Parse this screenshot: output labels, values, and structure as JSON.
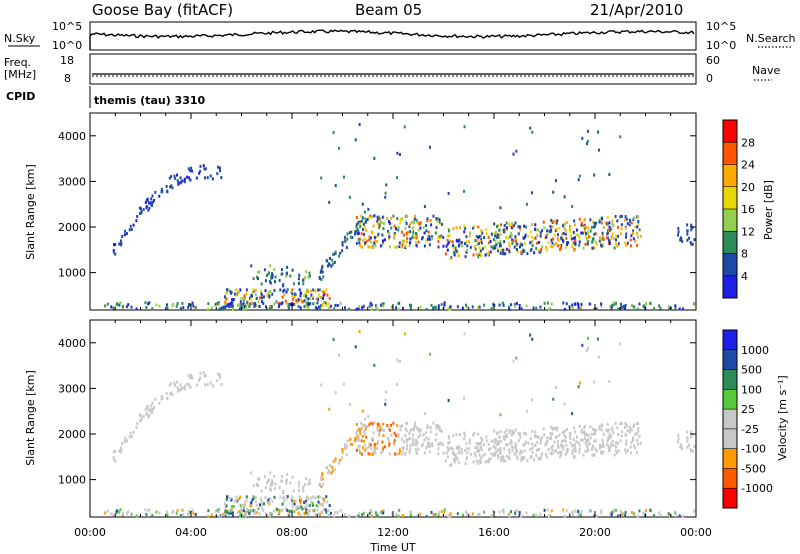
{
  "header": {
    "station": "Goose Bay (fitACF)",
    "beam": "Beam 05",
    "date": "21/Apr/2010"
  },
  "strip_labels": {
    "nsky": "N.Sky",
    "nsky_ticks": [
      "10^5",
      "10^0"
    ],
    "nsearch": "N.Search",
    "freq": "Freq.",
    "freq_unit": "[MHz]",
    "freq_ticks": [
      "18",
      "8"
    ],
    "nave": "Nave",
    "nave_ticks": [
      "60",
      "0"
    ],
    "cpid": "CPID",
    "program": "themis (tau) 3310"
  },
  "chart_data": [
    {
      "type": "heatmap",
      "name": "power",
      "ylabel": "Slant Range [km]",
      "xlabel": "",
      "y_ticks": [
        "4000",
        "3000",
        "2000",
        "1000"
      ],
      "ylim": [
        180,
        4500
      ],
      "colorbar_label": "Power [dB]",
      "colorbar_ticks": [
        "28",
        "24",
        "20",
        "16",
        "12",
        "8",
        "4"
      ],
      "colorbar_colors": [
        "#ff0000",
        "#ff5500",
        "#ffaa00",
        "#e6d800",
        "#92d050",
        "#2e8b57",
        "#1f4aa8",
        "#1e1ee6"
      ],
      "features": [
        {
          "t_start": 1.0,
          "t_end": 5.2,
          "r_start": 1500,
          "r_end": 3200,
          "note": "arc"
        },
        {
          "t_start": 5.5,
          "t_end": 9.5,
          "r_start": 250,
          "r_end": 600
        },
        {
          "t_start": 10.5,
          "t_end": 21.8,
          "r_start": 1300,
          "r_end": 2200
        },
        {
          "t_start": 0.5,
          "t_end": 24.0,
          "r_start": 180,
          "r_end": 350
        }
      ]
    },
    {
      "type": "heatmap",
      "name": "velocity",
      "ylabel": "Slant Range [km]",
      "xlabel": "Time UT",
      "y_ticks": [
        "4000",
        "3000",
        "2000",
        "1000"
      ],
      "ylim": [
        180,
        4500
      ],
      "colorbar_label": "Velocity [m s⁻¹]",
      "colorbar_ticks": [
        "1000",
        "500",
        "100",
        "25",
        "-25",
        "-100",
        "-500",
        "-1000"
      ],
      "colorbar_colors": [
        "#1e1ee6",
        "#1f4aa8",
        "#2e8b57",
        "#55c83c",
        "#c8c8c8",
        "#c8c8c8",
        "#ff9a00",
        "#ff5a00",
        "#ff0000"
      ],
      "x_ticks": [
        "00:00",
        "04:00",
        "08:00",
        "12:00",
        "16:00",
        "20:00",
        "00:00"
      ]
    }
  ]
}
